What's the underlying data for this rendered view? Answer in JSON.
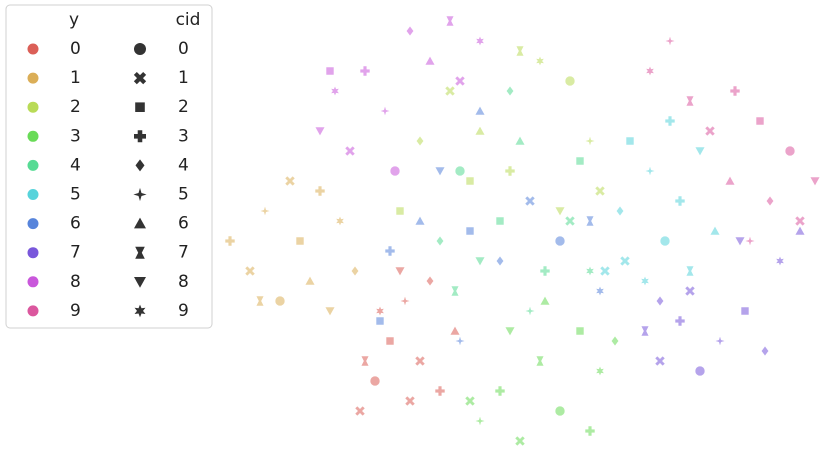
{
  "chart_data": {
    "type": "scatter",
    "hue_title": "y",
    "style_title": "cid",
    "style_names": [
      "0",
      "1",
      "2",
      "3",
      "4",
      "5",
      "6",
      "7",
      "8",
      "9"
    ],
    "markers": [
      "circle",
      "x",
      "square",
      "plus",
      "diamond",
      "star4",
      "triangle-up",
      "hourglass",
      "triangle-down",
      "star"
    ],
    "xlim": [
      210,
      830
    ],
    "ylim": [
      0,
      471
    ],
    "series": [
      {
        "name": "0",
        "color": "#db5f57",
        "x": [
          360,
          375,
          390,
          405,
          420,
          440,
          455,
          400,
          380,
          430,
          365,
          410
        ],
        "values": [
          60,
          90,
          130,
          170,
          110,
          80,
          140,
          200,
          160,
          190,
          110,
          70
        ],
        "cid": [
          1,
          0,
          2,
          5,
          1,
          3,
          6,
          8,
          9,
          4,
          7,
          1
        ]
      },
      {
        "name": "1",
        "color": "#dbae57",
        "x": [
          230,
          250,
          265,
          280,
          300,
          320,
          340,
          355,
          310,
          290,
          330,
          260
        ],
        "values": [
          230,
          200,
          260,
          170,
          230,
          280,
          250,
          200,
          190,
          290,
          160,
          170
        ],
        "cid": [
          3,
          1,
          5,
          0,
          2,
          3,
          9,
          4,
          6,
          1,
          8,
          7
        ]
      },
      {
        "name": "2",
        "color": "#b9db57",
        "x": [
          400,
          420,
          450,
          480,
          510,
          540,
          570,
          590,
          560,
          520,
          470,
          600
        ],
        "values": [
          260,
          330,
          380,
          340,
          300,
          410,
          390,
          330,
          260,
          420,
          290,
          280
        ],
        "cid": [
          2,
          4,
          1,
          6,
          3,
          9,
          0,
          5,
          8,
          7,
          2,
          1
        ]
      },
      {
        "name": "3",
        "color": "#69db57",
        "x": [
          480,
          500,
          520,
          540,
          560,
          580,
          600,
          615,
          545,
          510,
          590,
          470
        ],
        "values": [
          50,
          80,
          30,
          110,
          60,
          140,
          100,
          130,
          170,
          140,
          40,
          70
        ],
        "cid": [
          5,
          3,
          1,
          7,
          0,
          2,
          9,
          4,
          6,
          8,
          3,
          1
        ]
      },
      {
        "name": "4",
        "color": "#57db94",
        "x": [
          440,
          460,
          480,
          500,
          520,
          545,
          570,
          590,
          530,
          455,
          510,
          580
        ],
        "values": [
          230,
          300,
          210,
          250,
          330,
          200,
          250,
          200,
          160,
          180,
          380,
          310
        ],
        "cid": [
          4,
          0,
          8,
          2,
          6,
          3,
          1,
          9,
          5,
          7,
          4,
          2
        ]
      },
      {
        "name": "5",
        "color": "#57d3db",
        "x": [
          605,
          620,
          630,
          650,
          665,
          680,
          700,
          715,
          645,
          690,
          625,
          670
        ],
        "values": [
          200,
          260,
          330,
          300,
          230,
          270,
          320,
          240,
          190,
          200,
          210,
          350
        ],
        "cid": [
          1,
          4,
          2,
          5,
          0,
          3,
          8,
          6,
          9,
          7,
          1,
          3
        ]
      },
      {
        "name": "6",
        "color": "#5784db",
        "x": [
          420,
          470,
          500,
          530,
          440,
          560,
          390,
          460,
          600,
          590,
          480,
          380
        ],
        "values": [
          250,
          240,
          210,
          270,
          300,
          230,
          220,
          130,
          180,
          250,
          360,
          150
        ],
        "cid": [
          6,
          2,
          4,
          1,
          8,
          0,
          3,
          5,
          9,
          7,
          6,
          2
        ]
      },
      {
        "name": "7",
        "color": "#7957db",
        "x": [
          645,
          660,
          680,
          700,
          720,
          745,
          765,
          780,
          800,
          740,
          690,
          660
        ],
        "values": [
          140,
          110,
          150,
          100,
          130,
          160,
          120,
          210,
          240,
          230,
          180,
          170
        ],
        "cid": [
          7,
          1,
          3,
          0,
          5,
          2,
          4,
          9,
          6,
          8,
          1,
          4
        ]
      },
      {
        "name": "8",
        "color": "#c957db",
        "x": [
          320,
          335,
          350,
          365,
          385,
          395,
          330,
          410,
          430,
          450,
          480,
          460
        ],
        "values": [
          340,
          380,
          320,
          400,
          360,
          300,
          400,
          440,
          410,
          450,
          430,
          390
        ],
        "cid": [
          8,
          9,
          1,
          3,
          5,
          0,
          2,
          4,
          6,
          7,
          9,
          1
        ]
      },
      {
        "name": "9",
        "color": "#db579e",
        "x": [
          650,
          670,
          690,
          710,
          735,
          760,
          790,
          815,
          770,
          730,
          750,
          800
        ],
        "values": [
          400,
          430,
          370,
          340,
          380,
          350,
          320,
          290,
          270,
          290,
          230,
          250
        ],
        "cid": [
          9,
          5,
          7,
          1,
          3,
          2,
          0,
          8,
          4,
          6,
          5,
          1
        ]
      }
    ]
  }
}
